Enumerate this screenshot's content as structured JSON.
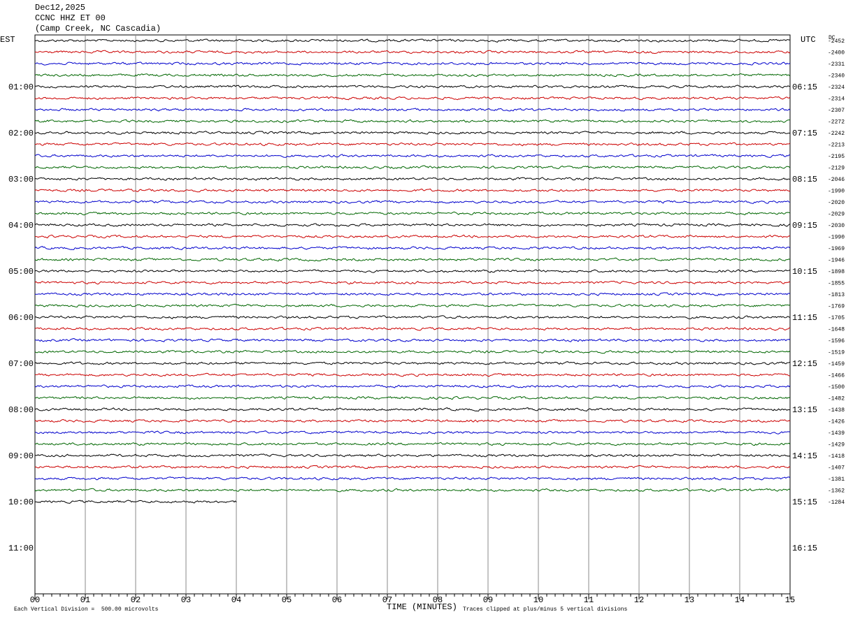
{
  "header": {
    "date": "Dec12,2025",
    "station": "CCNC HHZ ET 00",
    "location": "(Camp Creek, NC Cascadia)"
  },
  "left_axis": {
    "title": "EST",
    "labels": [
      "01:00",
      "02:00",
      "03:00",
      "04:00",
      "05:00",
      "06:00",
      "07:00",
      "08:00",
      "09:00",
      "10:00",
      "11:00"
    ]
  },
  "right_axis": {
    "title": "UTC",
    "labels": [
      "06:15",
      "07:15",
      "08:15",
      "09:15",
      "10:15",
      "11:15",
      "12:15",
      "13:15",
      "14:15",
      "15:15",
      "16:15"
    ]
  },
  "dc": {
    "title": "DC",
    "values": [
      -2452,
      -2400,
      -2331,
      -2340,
      -2324,
      -2314,
      -2307,
      -2272,
      -2242,
      -2213,
      -2195,
      -2129,
      -2046,
      -1990,
      -2020,
      -2029,
      -2030,
      -1990,
      -1969,
      -1946,
      -1898,
      -1855,
      -1813,
      -1769,
      -1705,
      -1648,
      -1596,
      -1519,
      -1459,
      -1466,
      -1500,
      -1482,
      -1438,
      -1426,
      -1439,
      -1429,
      -1418,
      -1407,
      -1381,
      -1362,
      -1284
    ]
  },
  "x_axis": {
    "title": "TIME (MINUTES)",
    "labels": [
      "00",
      "01",
      "02",
      "03",
      "04",
      "05",
      "06",
      "07",
      "08",
      "09",
      "10",
      "11",
      "12",
      "13",
      "14",
      "15"
    ]
  },
  "footer": {
    "scale": "Each Vertical Division =  500.00 microvolts",
    "clip": "Traces clipped at plus/minus 5 vertical divisions"
  }
}
